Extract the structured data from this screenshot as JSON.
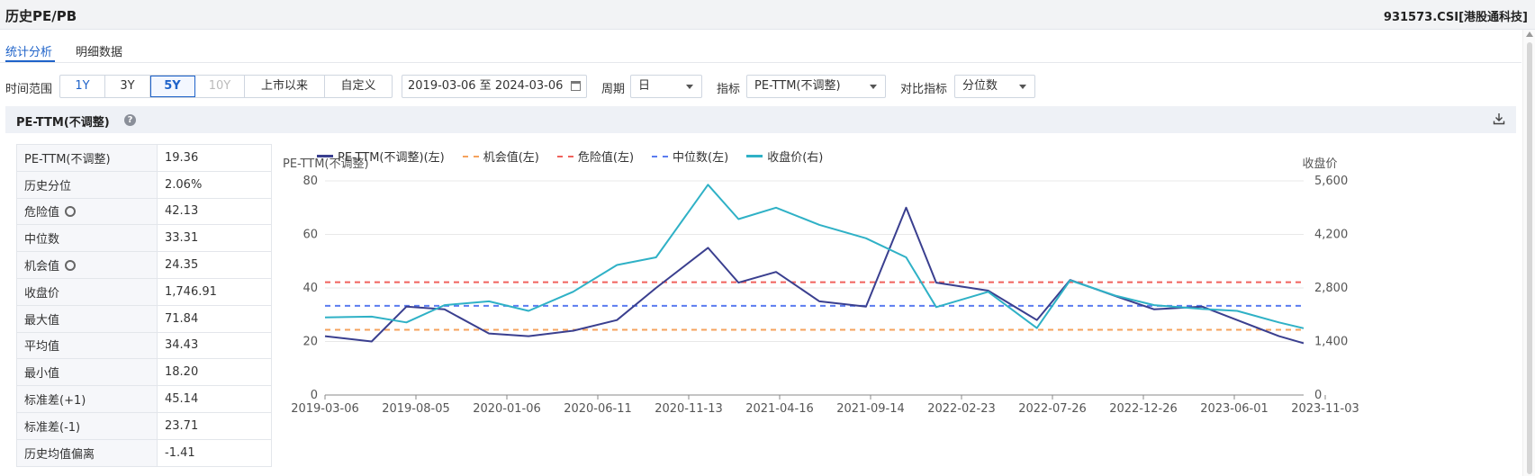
{
  "header": {
    "title": "历史PE/PB",
    "code": "931573.CSI[港股通科技]"
  },
  "tabs": [
    {
      "label": "统计分析",
      "active": true
    },
    {
      "label": "明细数据",
      "active": false
    }
  ],
  "filters": {
    "range_label": "时间范围",
    "range_buttons": [
      "1Y",
      "3Y",
      "5Y",
      "10Y",
      "上市以来",
      "自定义"
    ],
    "range_selected": "5Y",
    "date_range": "2019-03-06 至 2024-03-06",
    "period_label": "周期",
    "period_value": "日",
    "indicator_label": "指标",
    "indicator_value": "PE-TTM(不调整)",
    "compare_label": "对比指标",
    "compare_value": "分位数"
  },
  "panel": {
    "title": "PE-TTM(不调整)",
    "help_icon": "question-icon",
    "download_icon": "download-icon"
  },
  "stats": [
    {
      "key": "PE-TTM(不调整)",
      "value": "19.36",
      "gear": false
    },
    {
      "key": "历史分位",
      "value": "2.06%",
      "gear": false
    },
    {
      "key": "危险值",
      "value": "42.13",
      "gear": true
    },
    {
      "key": "中位数",
      "value": "33.31",
      "gear": false
    },
    {
      "key": "机会值",
      "value": "24.35",
      "gear": true
    },
    {
      "key": "收盘价",
      "value": "1,746.91",
      "gear": false
    },
    {
      "key": "最大值",
      "value": "71.84",
      "gear": false
    },
    {
      "key": "平均值",
      "value": "34.43",
      "gear": false
    },
    {
      "key": "最小值",
      "value": "18.20",
      "gear": false
    },
    {
      "key": "标准差(+1)",
      "value": "45.14",
      "gear": false
    },
    {
      "key": "标准差(-1)",
      "value": "23.71",
      "gear": false
    },
    {
      "key": "历史均值偏离",
      "value": "-1.41",
      "gear": false
    }
  ],
  "colors": {
    "pe": "#3a3f8f",
    "opportunity": "#f5a25d",
    "danger": "#f0625c",
    "median": "#5b7cf0",
    "close": "#2fb1c6",
    "accent": "#1f63c9"
  },
  "chart_data": {
    "type": "line",
    "ylabel_left": "PE-TTM(不调整)",
    "ylabel_right": "收盘价",
    "yticks_left": [
      "80",
      "60",
      "40",
      "20",
      "0"
    ],
    "yticks_right": [
      "5,600",
      "4,200",
      "2,800",
      "1,400",
      "0"
    ],
    "ylim_left": [
      0,
      80
    ],
    "ylim_right": [
      0,
      5600
    ],
    "xtick_labels": [
      "2019-03-06",
      "2019-08-05",
      "2020-01-06",
      "2020-06-11",
      "2020-11-13",
      "2021-04-16",
      "2021-09-14",
      "2022-02-23",
      "2022-07-26",
      "2022-12-26",
      "2023-06-01",
      "2023-11-03"
    ],
    "legend": [
      "PE-TTM(不调整)(左)",
      "机会值(左)",
      "危险值(左)",
      "中位数(左)",
      "收盘价(右)"
    ],
    "legend_position": "top-left",
    "grid": "horizontal",
    "reference_lines": {
      "danger": 42.13,
      "median": 33.31,
      "opportunity": 24.35
    },
    "x": [
      "2019-03-06",
      "2019-06-01",
      "2019-08-05",
      "2019-10-15",
      "2020-01-06",
      "2020-03-20",
      "2020-06-11",
      "2020-09-01",
      "2020-11-13",
      "2021-02-18",
      "2021-04-16",
      "2021-06-25",
      "2021-09-14",
      "2021-12-10",
      "2022-02-23",
      "2022-04-20",
      "2022-07-26",
      "2022-10-25",
      "2022-12-26",
      "2023-03-20",
      "2023-06-01",
      "2023-08-30",
      "2023-11-03",
      "2024-01-20",
      "2024-03-06"
    ],
    "series": [
      {
        "name": "PE-TTM(不调整)(左)",
        "axis": "left",
        "values": [
          22,
          20,
          33,
          32,
          23,
          22,
          24,
          28,
          40,
          55,
          42,
          46,
          35,
          33,
          70,
          42,
          39,
          28,
          43,
          37,
          32,
          33,
          28,
          22,
          19.36
        ]
      },
      {
        "name": "收盘价(右)",
        "axis": "right",
        "values": [
          2030,
          2050,
          1900,
          2350,
          2450,
          2200,
          2700,
          3400,
          3600,
          5500,
          4600,
          4900,
          4450,
          4100,
          3600,
          2300,
          2700,
          1750,
          3000,
          2600,
          2350,
          2250,
          2200,
          1900,
          1746.91
        ]
      }
    ]
  }
}
